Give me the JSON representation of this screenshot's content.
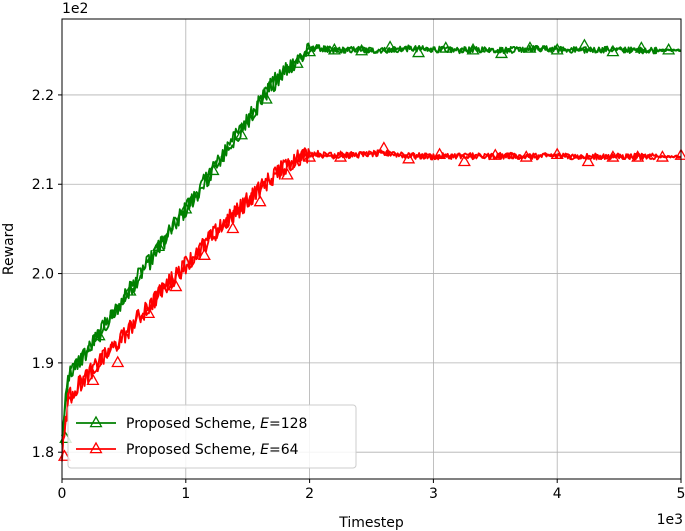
{
  "chart_data": {
    "type": "line",
    "title": "",
    "xlabel": "Timestep",
    "ylabel": "Reward",
    "x_offset_label": "1e3",
    "y_offset_label": "1e2",
    "xlim": [
      0,
      5
    ],
    "ylim": [
      1.77,
      2.285
    ],
    "xticks": [
      0,
      1,
      2,
      3,
      4,
      5
    ],
    "xtick_labels": [
      "0",
      "1",
      "2",
      "3",
      "4",
      "5"
    ],
    "yticks": [
      1.8,
      1.9,
      2.0,
      2.1,
      2.2
    ],
    "ytick_labels": [
      "1.8",
      "1.9",
      "2.0",
      "2.1",
      "2.2"
    ],
    "grid": true,
    "legend_position": "bottom-left",
    "series": [
      {
        "name_prefix": "Proposed Scheme, ",
        "name_var": "E",
        "name_suffix": "=128",
        "color": "#008000",
        "marker": "triangle",
        "x": [
          0,
          0.05,
          0.1,
          0.2,
          0.3,
          0.4,
          0.5,
          0.6,
          0.7,
          0.8,
          0.9,
          1.0,
          1.1,
          1.2,
          1.3,
          1.4,
          1.5,
          1.6,
          1.7,
          1.8,
          1.9,
          2.0,
          2.05,
          2.1,
          2.2,
          2.4,
          2.6,
          2.8,
          3.0,
          3.2,
          3.4,
          3.6,
          3.8,
          4.0,
          4.2,
          4.4,
          4.6,
          4.8,
          5.0
        ],
        "y": [
          1.815,
          1.885,
          1.895,
          1.912,
          1.932,
          1.952,
          1.972,
          1.993,
          2.012,
          2.032,
          2.052,
          2.072,
          2.092,
          2.112,
          2.132,
          2.152,
          2.172,
          2.192,
          2.212,
          2.228,
          2.24,
          2.25,
          2.253,
          2.252,
          2.25,
          2.251,
          2.25,
          2.252,
          2.251,
          2.25,
          2.251,
          2.25,
          2.252,
          2.251,
          2.25,
          2.251,
          2.25,
          2.25,
          2.25
        ],
        "marker_x": [
          0.03,
          0.3,
          0.55,
          0.78,
          1.0,
          1.22,
          1.45,
          1.65,
          1.9,
          2.0,
          2.2,
          2.42,
          2.65,
          2.88,
          3.1,
          3.32,
          3.55,
          3.78,
          4.0,
          4.22,
          4.45,
          4.68,
          4.9
        ],
        "marker_y": [
          1.815,
          1.93,
          1.98,
          2.03,
          2.072,
          2.115,
          2.155,
          2.195,
          2.235,
          2.248,
          2.25,
          2.249,
          2.253,
          2.247,
          2.252,
          2.25,
          2.246,
          2.252,
          2.25,
          2.255,
          2.248,
          2.252,
          2.25
        ]
      },
      {
        "name_prefix": "Proposed Scheme, ",
        "name_var": "E",
        "name_suffix": "=64",
        "color": "#ff0000",
        "marker": "triangle",
        "x": [
          0,
          0.05,
          0.1,
          0.2,
          0.3,
          0.4,
          0.5,
          0.6,
          0.7,
          0.8,
          0.9,
          1.0,
          1.1,
          1.2,
          1.3,
          1.4,
          1.5,
          1.6,
          1.7,
          1.8,
          1.9,
          2.0,
          2.05,
          2.1,
          2.2,
          2.4,
          2.6,
          2.8,
          3.0,
          3.2,
          3.4,
          3.6,
          3.8,
          4.0,
          4.2,
          4.4,
          4.6,
          4.8,
          5.0
        ],
        "y": [
          1.795,
          1.86,
          1.87,
          1.885,
          1.9,
          1.915,
          1.93,
          1.948,
          1.962,
          1.98,
          1.995,
          2.01,
          2.025,
          2.04,
          2.055,
          2.068,
          2.082,
          2.095,
          2.108,
          2.12,
          2.13,
          2.134,
          2.135,
          2.133,
          2.132,
          2.133,
          2.135,
          2.132,
          2.131,
          2.132,
          2.131,
          2.132,
          2.131,
          2.132,
          2.131,
          2.131,
          2.131,
          2.131,
          2.131
        ],
        "marker_x": [
          0.02,
          0.25,
          0.45,
          0.7,
          0.92,
          1.15,
          1.38,
          1.6,
          1.82,
          2.0,
          2.25,
          2.6,
          2.8,
          3.05,
          3.25,
          3.5,
          3.75,
          4.0,
          4.25,
          4.45,
          4.65,
          4.85,
          5.0
        ],
        "marker_y": [
          1.795,
          1.88,
          1.9,
          1.955,
          1.985,
          2.02,
          2.05,
          2.08,
          2.11,
          2.13,
          2.13,
          2.14,
          2.128,
          2.133,
          2.125,
          2.132,
          2.13,
          2.133,
          2.125,
          2.13,
          2.13,
          2.13,
          2.132
        ]
      }
    ]
  }
}
